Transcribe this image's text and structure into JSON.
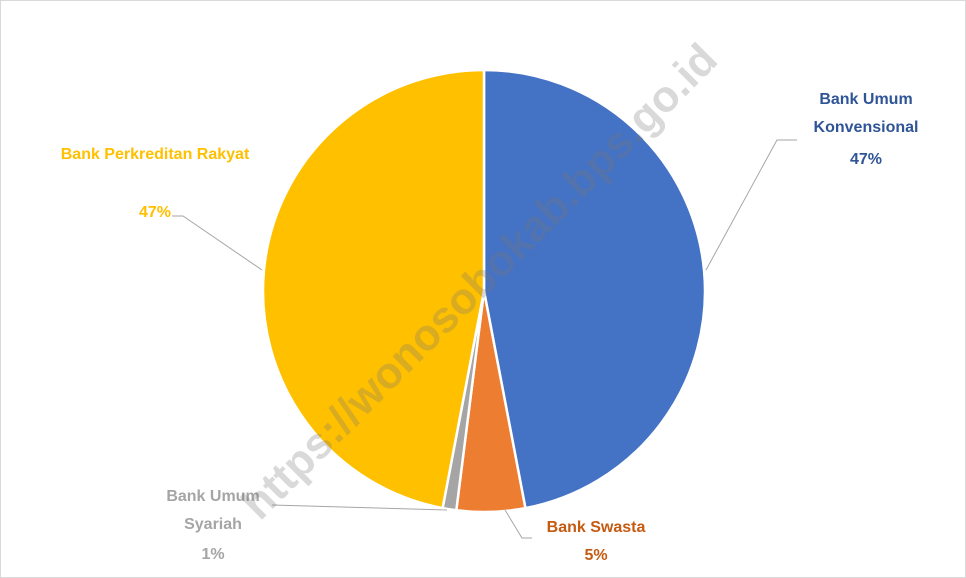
{
  "chart_data": {
    "type": "pie",
    "categories": [
      "Bank Umum Konvensional",
      "Bank Swasta",
      "Bank Umum Syariah",
      "Bank Perkreditan Rakyat"
    ],
    "values": [
      47,
      5,
      1,
      47
    ],
    "value_labels": [
      "47%",
      "5%",
      "1%",
      "47%"
    ],
    "colors": [
      "#4472c4",
      "#ed7d31",
      "#a5a5a5",
      "#ffc000"
    ],
    "label_colors": [
      "#2f5597",
      "#c55a11",
      "#a5a5a5",
      "#ffc000"
    ],
    "watermark": "https://wonosobokab.bps.go.id"
  }
}
